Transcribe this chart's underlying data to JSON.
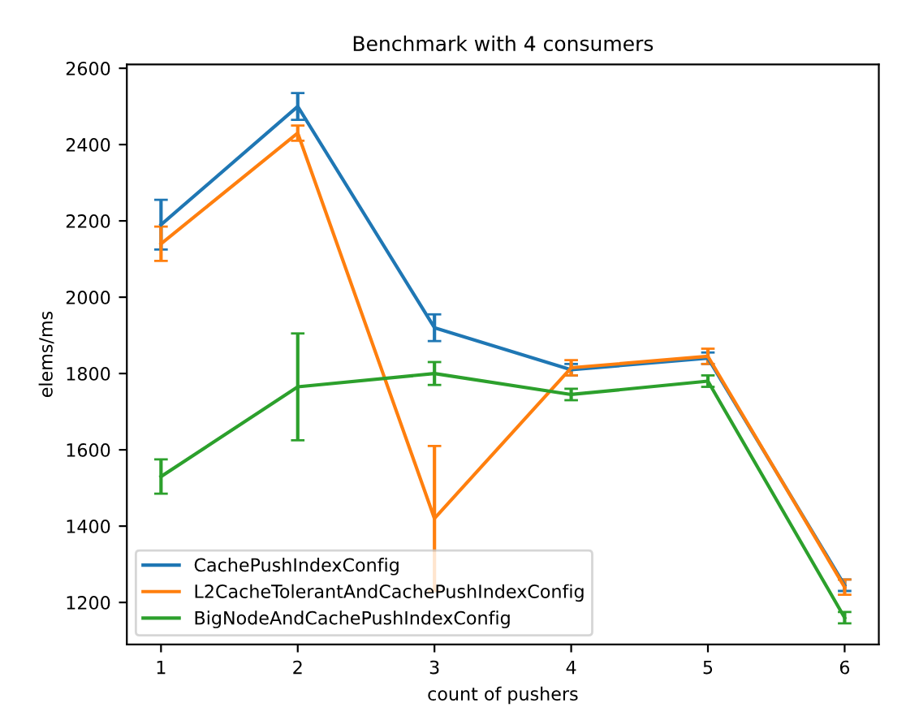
{
  "chart_data": {
    "type": "line",
    "title": "Benchmark with 4 consumers",
    "xlabel": "count of pushers",
    "ylabel": "elems/ms",
    "x": [
      1,
      2,
      3,
      4,
      5,
      6
    ],
    "series": [
      {
        "name": "CachePushIndexConfig",
        "color": "#1f77b4",
        "values": [
          2190,
          2500,
          1920,
          1810,
          1840,
          1245
        ],
        "errors": [
          65,
          35,
          35,
          15,
          15,
          15
        ]
      },
      {
        "name": "L2CacheTolerantAndCachePushIndexConfig",
        "color": "#ff7f0e",
        "values": [
          2140,
          2430,
          1420,
          1815,
          1845,
          1240
        ],
        "errors": [
          45,
          20,
          190,
          20,
          20,
          20
        ]
      },
      {
        "name": "BigNodeAndCachePushIndexConfig",
        "color": "#2ca02c",
        "values": [
          1530,
          1765,
          1800,
          1745,
          1780,
          1160
        ],
        "errors": [
          45,
          140,
          30,
          15,
          15,
          15
        ]
      }
    ],
    "xlim": [
      0.75,
      6.25
    ],
    "ylim": [
      1090,
      2610
    ],
    "xticks": [
      1,
      2,
      3,
      4,
      5,
      6
    ],
    "yticks": [
      1200,
      1400,
      1600,
      1800,
      2000,
      2200,
      2400,
      2600
    ],
    "legend": "lower left",
    "grid": false
  }
}
